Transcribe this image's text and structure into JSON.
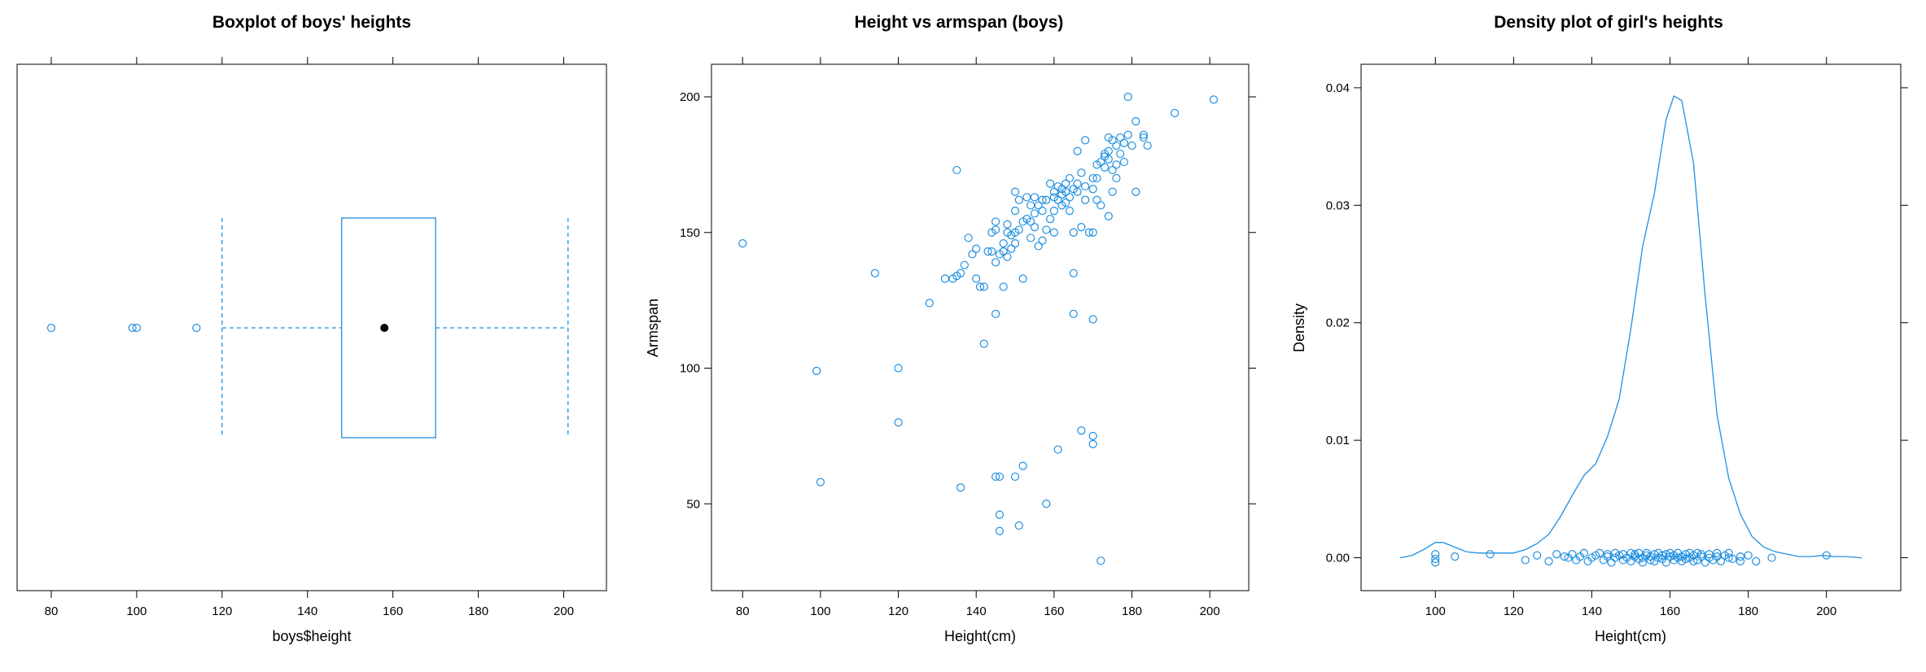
{
  "chart_data": [
    {
      "type": "boxplot",
      "title": "Boxplot of boys' heights",
      "xlabel": "boys$height",
      "ylabel": "",
      "xlim": [
        72,
        210
      ],
      "xticks": [
        80,
        100,
        120,
        140,
        160,
        180,
        200
      ],
      "whisker_low": 120,
      "q1": 148,
      "median": 158,
      "q3": 170,
      "whisker_high": 201,
      "outliers": [
        80,
        99,
        100,
        114
      ],
      "colors": {
        "box": "#1f8fe0",
        "median": "#000000"
      }
    },
    {
      "type": "scatter",
      "title": "Height vs armspan (boys)",
      "xlabel": "Height(cm)",
      "ylabel": "Armspan",
      "xlim": [
        72,
        210
      ],
      "ylim": [
        18,
        212
      ],
      "xticks": [
        80,
        100,
        120,
        140,
        160,
        180,
        200
      ],
      "yticks": [
        50,
        100,
        150,
        200
      ],
      "points": [
        [
          80,
          146
        ],
        [
          99,
          99
        ],
        [
          100,
          58
        ],
        [
          114,
          135
        ],
        [
          120,
          100
        ],
        [
          120,
          80
        ],
        [
          128,
          124
        ],
        [
          132,
          133
        ],
        [
          134,
          133
        ],
        [
          135,
          173
        ],
        [
          135,
          134
        ],
        [
          136,
          56
        ],
        [
          137,
          138
        ],
        [
          136,
          135
        ],
        [
          138,
          148
        ],
        [
          139,
          142
        ],
        [
          140,
          144
        ],
        [
          140,
          133
        ],
        [
          141,
          130
        ],
        [
          142,
          130
        ],
        [
          142,
          109
        ],
        [
          143,
          143
        ],
        [
          144,
          143
        ],
        [
          144,
          150
        ],
        [
          145,
          139
        ],
        [
          145,
          154
        ],
        [
          145,
          151
        ],
        [
          145,
          120
        ],
        [
          145,
          60
        ],
        [
          146,
          60
        ],
        [
          146,
          46
        ],
        [
          146,
          40
        ],
        [
          146,
          142
        ],
        [
          147,
          146
        ],
        [
          147,
          130
        ],
        [
          147,
          143
        ],
        [
          148,
          150
        ],
        [
          148,
          141
        ],
        [
          148,
          153
        ],
        [
          149,
          149
        ],
        [
          149,
          144
        ],
        [
          150,
          150
        ],
        [
          150,
          158
        ],
        [
          150,
          165
        ],
        [
          150,
          146
        ],
        [
          150,
          60
        ],
        [
          151,
          162
        ],
        [
          151,
          42
        ],
        [
          151,
          151
        ],
        [
          152,
          154
        ],
        [
          152,
          133
        ],
        [
          152,
          64
        ],
        [
          153,
          163
        ],
        [
          153,
          155
        ],
        [
          154,
          160
        ],
        [
          154,
          154
        ],
        [
          154,
          148
        ],
        [
          155,
          157
        ],
        [
          155,
          163
        ],
        [
          155,
          152
        ],
        [
          156,
          145
        ],
        [
          156,
          160
        ],
        [
          157,
          147
        ],
        [
          157,
          158
        ],
        [
          157,
          162
        ],
        [
          158,
          151
        ],
        [
          158,
          162
        ],
        [
          158,
          50
        ],
        [
          159,
          155
        ],
        [
          159,
          168
        ],
        [
          160,
          150
        ],
        [
          160,
          158
        ],
        [
          160,
          165
        ],
        [
          160,
          163
        ],
        [
          161,
          162
        ],
        [
          161,
          70
        ],
        [
          161,
          167
        ],
        [
          162,
          160
        ],
        [
          162,
          164
        ],
        [
          162,
          166
        ],
        [
          163,
          165
        ],
        [
          163,
          161
        ],
        [
          163,
          168
        ],
        [
          164,
          163
        ],
        [
          164,
          170
        ],
        [
          164,
          158
        ],
        [
          165,
          150
        ],
        [
          165,
          166
        ],
        [
          165,
          135
        ],
        [
          165,
          120
        ],
        [
          166,
          180
        ],
        [
          166,
          168
        ],
        [
          166,
          165
        ],
        [
          167,
          172
        ],
        [
          167,
          152
        ],
        [
          167,
          77
        ],
        [
          168,
          184
        ],
        [
          168,
          162
        ],
        [
          168,
          167
        ],
        [
          169,
          150
        ],
        [
          170,
          150
        ],
        [
          170,
          170
        ],
        [
          170,
          166
        ],
        [
          170,
          118
        ],
        [
          170,
          75
        ],
        [
          170,
          72
        ],
        [
          171,
          175
        ],
        [
          171,
          162
        ],
        [
          171,
          170
        ],
        [
          172,
          176
        ],
        [
          172,
          160
        ],
        [
          172,
          29
        ],
        [
          173,
          179
        ],
        [
          173,
          174
        ],
        [
          173,
          178
        ],
        [
          174,
          177
        ],
        [
          174,
          180
        ],
        [
          174,
          185
        ],
        [
          174,
          156
        ],
        [
          175,
          184
        ],
        [
          175,
          165
        ],
        [
          175,
          173
        ],
        [
          176,
          175
        ],
        [
          176,
          170
        ],
        [
          176,
          182
        ],
        [
          177,
          179
        ],
        [
          177,
          185
        ],
        [
          178,
          176
        ],
        [
          178,
          183
        ],
        [
          179,
          200
        ],
        [
          179,
          186
        ],
        [
          180,
          182
        ],
        [
          181,
          165
        ],
        [
          181,
          191
        ],
        [
          183,
          186
        ],
        [
          183,
          185
        ],
        [
          184,
          182
        ],
        [
          191,
          194
        ],
        [
          201,
          199
        ]
      ],
      "colors": {
        "points": "#1f8fe0"
      }
    },
    {
      "type": "line",
      "title": "Density plot of girl's heights",
      "xlabel": "Height(cm)",
      "ylabel": "Density",
      "xlim": [
        81,
        219
      ],
      "ylim": [
        -0.0028,
        0.042
      ],
      "xticks": [
        100,
        120,
        140,
        160,
        180,
        200
      ],
      "yticks": [
        0.0,
        0.01,
        0.02,
        0.03,
        0.04
      ],
      "ytick_labels": [
        "0.00",
        "0.01",
        "0.02",
        "0.03",
        "0.04"
      ],
      "density": [
        [
          91,
          0.0
        ],
        [
          94,
          0.0002
        ],
        [
          97,
          0.0007
        ],
        [
          100,
          0.0013
        ],
        [
          102,
          0.0013
        ],
        [
          105,
          0.0009
        ],
        [
          108,
          0.0005
        ],
        [
          111,
          0.0004
        ],
        [
          114,
          0.0004
        ],
        [
          117,
          0.0004
        ],
        [
          120,
          0.0004
        ],
        [
          123,
          0.0007
        ],
        [
          126,
          0.0012
        ],
        [
          129,
          0.002
        ],
        [
          132,
          0.0035
        ],
        [
          135,
          0.0053
        ],
        [
          138,
          0.007
        ],
        [
          141,
          0.008
        ],
        [
          144,
          0.0103
        ],
        [
          147,
          0.0135
        ],
        [
          150,
          0.0195
        ],
        [
          153,
          0.0265
        ],
        [
          156,
          0.031
        ],
        [
          159,
          0.0373
        ],
        [
          161,
          0.0393
        ],
        [
          163,
          0.0389
        ],
        [
          166,
          0.0336
        ],
        [
          169,
          0.0222
        ],
        [
          172,
          0.0122
        ],
        [
          175,
          0.0068
        ],
        [
          178,
          0.0037
        ],
        [
          181,
          0.0018
        ],
        [
          184,
          0.0009
        ],
        [
          187,
          0.0005
        ],
        [
          190,
          0.0003
        ],
        [
          193,
          0.0001
        ],
        [
          196,
          0.0001
        ],
        [
          199,
          0.0002
        ],
        [
          202,
          0.0001
        ],
        [
          205,
          0.0001
        ],
        [
          209,
          0.0
        ]
      ],
      "rug_points": [
        [
          100,
          0.0003
        ],
        [
          100,
          -0.0001
        ],
        [
          100,
          -0.0004
        ],
        [
          105,
          0.0001
        ],
        [
          114,
          0.0003
        ],
        [
          123,
          -0.0002
        ],
        [
          126,
          0.0002
        ],
        [
          129,
          -0.0003
        ],
        [
          131,
          0.0003
        ],
        [
          133,
          0.0001
        ],
        [
          134,
          0.0
        ],
        [
          135,
          0.0003
        ],
        [
          136,
          -0.0002
        ],
        [
          137,
          0.0001
        ],
        [
          138,
          0.0004
        ],
        [
          139,
          -0.0003
        ],
        [
          140,
          0.0
        ],
        [
          141,
          0.0002
        ],
        [
          142,
          0.0004
        ],
        [
          143,
          -0.0002
        ],
        [
          144,
          0.0001
        ],
        [
          144,
          0.0003
        ],
        [
          145,
          -0.0004
        ],
        [
          146,
          0.0
        ],
        [
          146,
          0.0004
        ],
        [
          147,
          0.0002
        ],
        [
          148,
          -0.0002
        ],
        [
          148,
          0.0003
        ],
        [
          149,
          0.0
        ],
        [
          150,
          0.0004
        ],
        [
          150,
          -0.0003
        ],
        [
          151,
          0.0001
        ],
        [
          151,
          0.0003
        ],
        [
          152,
          -0.0001
        ],
        [
          152,
          0.0004
        ],
        [
          153,
          0.0
        ],
        [
          153,
          -0.0004
        ],
        [
          154,
          0.0002
        ],
        [
          154,
          0.0004
        ],
        [
          155,
          -0.0002
        ],
        [
          155,
          0.0001
        ],
        [
          156,
          0.0003
        ],
        [
          156,
          -0.0003
        ],
        [
          157,
          0.0
        ],
        [
          157,
          0.0004
        ],
        [
          158,
          0.0002
        ],
        [
          158,
          -0.0001
        ],
        [
          159,
          0.0003
        ],
        [
          159,
          -0.0004
        ],
        [
          160,
          0.0001
        ],
        [
          160,
          0.0004
        ],
        [
          161,
          -0.0002
        ],
        [
          161,
          0.0002
        ],
        [
          162,
          0.0
        ],
        [
          162,
          0.0004
        ],
        [
          163,
          -0.0003
        ],
        [
          163,
          0.0001
        ],
        [
          164,
          0.0003
        ],
        [
          164,
          -0.0001
        ],
        [
          165,
          0.0004
        ],
        [
          165,
          0.0
        ],
        [
          166,
          -0.0003
        ],
        [
          166,
          0.0002
        ],
        [
          167,
          0.0004
        ],
        [
          167,
          -0.0002
        ],
        [
          168,
          0.0001
        ],
        [
          168,
          0.0003
        ],
        [
          169,
          -0.0004
        ],
        [
          170,
          0.0
        ],
        [
          170,
          0.0003
        ],
        [
          171,
          -0.0002
        ],
        [
          172,
          0.0001
        ],
        [
          172,
          0.0004
        ],
        [
          173,
          -0.0003
        ],
        [
          174,
          0.0002
        ],
        [
          175,
          0.0
        ],
        [
          175,
          0.0004
        ],
        [
          176,
          -0.0001
        ],
        [
          178,
          -0.0003
        ],
        [
          178,
          0.0001
        ],
        [
          180,
          0.0002
        ],
        [
          182,
          -0.0003
        ],
        [
          186,
          0.0
        ],
        [
          200,
          0.0002
        ]
      ],
      "colors": {
        "line": "#1f8fe0",
        "points": "#1f8fe0"
      }
    }
  ]
}
